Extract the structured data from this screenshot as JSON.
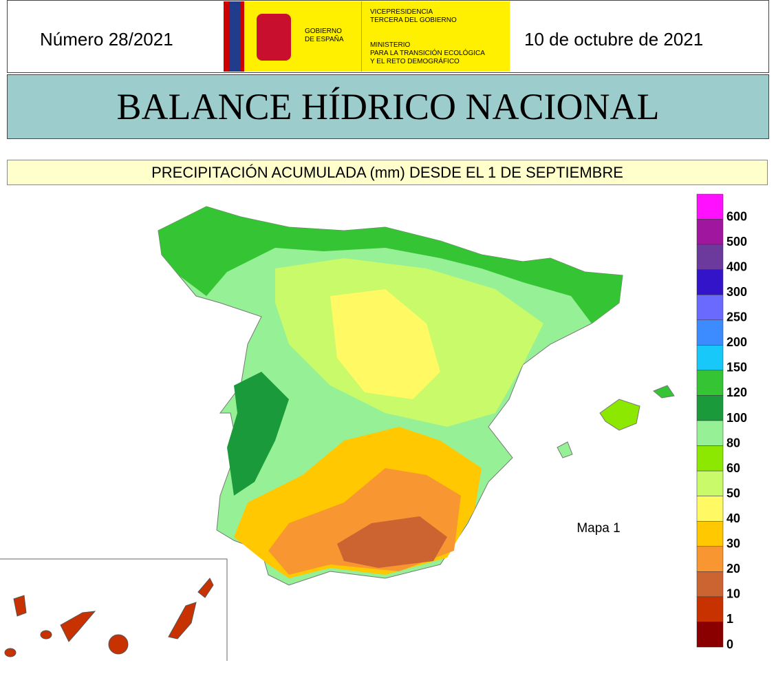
{
  "header": {
    "number": "Número 28/2021",
    "date": "10 de octubre de 2021",
    "logo": {
      "gobierno": [
        "GOBIERNO",
        "DE ESPAÑA"
      ],
      "vicepresidencia": [
        "VICEPRESIDENCIA",
        "TERCERA DEL GOBIERNO"
      ],
      "ministerio": [
        "MINISTERIO",
        "PARA LA TRANSICIÓN ECOLÓGICA",
        "Y EL RETO DEMOGRÁFICO"
      ]
    }
  },
  "title": "BALANCE HÍDRICO NACIONAL",
  "subtitle": "PRECIPITACIÓN ACUMULADA (mm) DESDE EL 1 DE SEPTIEMBRE",
  "map_label": "Mapa 1",
  "legend": {
    "labels": [
      600,
      500,
      400,
      300,
      250,
      200,
      150,
      120,
      100,
      80,
      60,
      50,
      40,
      30,
      20,
      10,
      1,
      0
    ],
    "colors": [
      "#ff10ff",
      "#a0169e",
      "#6b3a9c",
      "#3414c8",
      "#6a6aff",
      "#3c8cff",
      "#18c8f8",
      "#34c434",
      "#1a9a3a",
      "#96f096",
      "#8ce800",
      "#c8fa6a",
      "#fffa64",
      "#ffc800",
      "#f89632",
      "#cc6432",
      "#c83200",
      "#8a0000"
    ]
  }
}
